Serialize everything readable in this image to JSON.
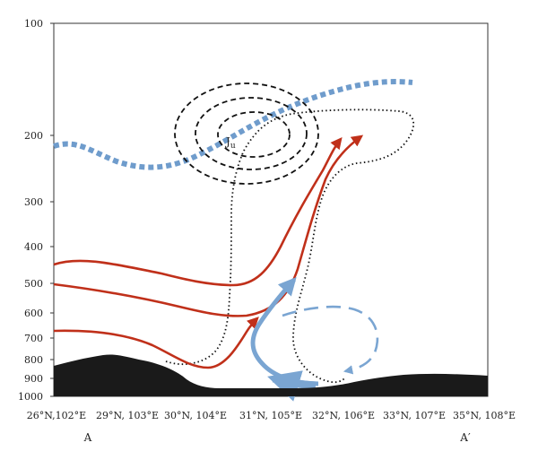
{
  "figure": {
    "y_axis_ticks": [
      "100",
      "200",
      "300",
      "400",
      "500",
      "600",
      "700",
      "800",
      "900",
      "1000"
    ],
    "x_axis_ticks": [
      "26°N,102°E",
      "29°N, 103°E",
      "30°N, 104°E",
      "31°N, 105°E",
      "32°N, 106°E",
      "33°N, 107°E",
      "35°N, 108°E"
    ],
    "section_start_label": "A",
    "section_end_label": "A′",
    "jet_label": "J",
    "jet_label_sub": "u"
  },
  "colors": {
    "flow_lines": "#c0301a",
    "jet_core": "#6f9ccc",
    "arrows_blue": "#7aa5d2",
    "terrain": "#1a1a1a",
    "contours": "#111111"
  }
}
